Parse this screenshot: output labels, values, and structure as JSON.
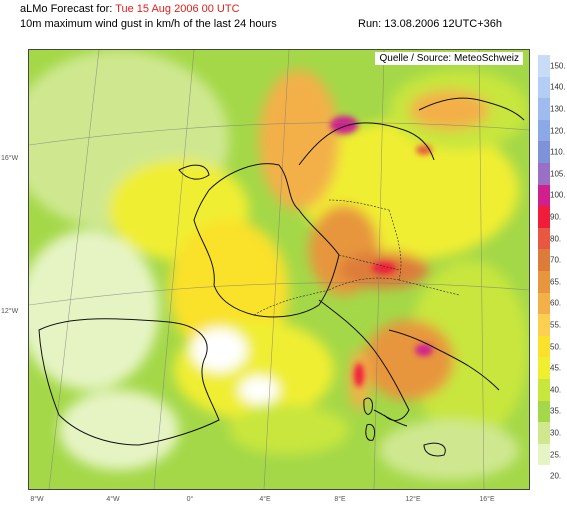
{
  "header": {
    "title_prefix": "aLMo Forecast for:",
    "forecast_date": "Tue 15 Aug 2006 00 UTC",
    "subtitle": "10m maximum wind gust in km/h of the last 24 hours",
    "run": "Run: 13.08.2006 12UTC+36h"
  },
  "map": {
    "source_note": "Quelle / Source: MeteoSchweiz",
    "lat_labels": [
      "16°W",
      "12°W"
    ],
    "lon_labels": [
      "8°W",
      "4°W",
      "0°",
      "4°E",
      "8°E",
      "12°E",
      "16°E"
    ]
  },
  "legend": {
    "unit": "km/h",
    "levels": [
      {
        "label": "150.",
        "color": "#c8dcf8"
      },
      {
        "label": "140.",
        "color": "#b4cdf4"
      },
      {
        "label": "130.",
        "color": "#a0bcef"
      },
      {
        "label": "120.",
        "color": "#8ca8e6"
      },
      {
        "label": "110.",
        "color": "#7e92d8"
      },
      {
        "label": "105.",
        "color": "#9a70c4"
      },
      {
        "label": "100.",
        "color": "#d0208e"
      },
      {
        "label": "90.",
        "color": "#f01c3c"
      },
      {
        "label": "80.",
        "color": "#e85840"
      },
      {
        "label": "70.",
        "color": "#dd7c3a"
      },
      {
        "label": "65.",
        "color": "#e7963e"
      },
      {
        "label": "60.",
        "color": "#f3b048"
      },
      {
        "label": "55.",
        "color": "#fbd050"
      },
      {
        "label": "50.",
        "color": "#fae12c"
      },
      {
        "label": "45.",
        "color": "#f0ee30"
      },
      {
        "label": "40.",
        "color": "#c8e63c"
      },
      {
        "label": "35.",
        "color": "#a4d848"
      },
      {
        "label": "30.",
        "color": "#cfe890"
      },
      {
        "label": "25.",
        "color": "#e6f4c4"
      },
      {
        "label": "20.",
        "color": "#ffffff"
      }
    ]
  }
}
